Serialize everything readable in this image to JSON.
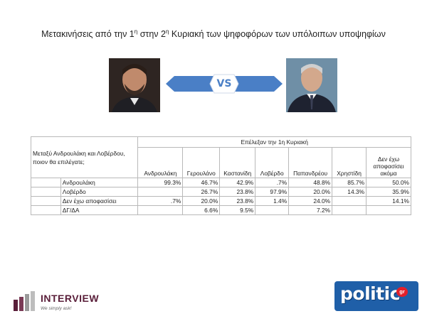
{
  "title": {
    "part1": "Μετακινήσεις από την 1",
    "sup1": "η",
    "part2": " στην 2",
    "sup2": "η",
    "part3": " Κυριακή των ψηφοφόρων των υπόλοιπων υποψηφίων"
  },
  "versus_label": "VS",
  "colors": {
    "banner": "#4a7fc6",
    "interview_brand": "#5a1f3a",
    "politic_bg": "#1f5fa8",
    "politic_accent": "#e3202a"
  },
  "table": {
    "question": "Μεταξύ Ανδρουλάκη και Λοβέρδου, ποιον θα επιλέγατε;",
    "group_header": "Επέλεξαν την 1η Κυριακή",
    "columns": [
      "Ανδρουλάκη",
      "Γερουλάνο",
      "Καστανίδη",
      "Λοβέρδο",
      "Παπανδρέου",
      "Χρηστίδη",
      "Δεν έχω αποφασίσει ακόμα"
    ],
    "rows": [
      {
        "label": "Ανδρουλάκη",
        "values": [
          "99.3%",
          "46.7%",
          "42.9%",
          ".7%",
          "48.8%",
          "85.7%",
          "50.0%"
        ]
      },
      {
        "label": "Λοβέρδο",
        "values": [
          "",
          "26.7%",
          "23.8%",
          "97.9%",
          "20.0%",
          "14.3%",
          "35.9%"
        ]
      },
      {
        "label": "Δεν έχω αποφασίσει",
        "values": [
          ".7%",
          "20.0%",
          "23.8%",
          "1.4%",
          "24.0%",
          "",
          "14.1%"
        ]
      },
      {
        "label": "ΔΓ/ΔΑ",
        "values": [
          "",
          "6.6%",
          "9.5%",
          "",
          "7.2%",
          "",
          ""
        ]
      }
    ]
  },
  "footer": {
    "interview_name": "INTERVIEW",
    "interview_tagline": "We simply ask!",
    "politic_name": "politic",
    "politic_suffix": "gr"
  }
}
